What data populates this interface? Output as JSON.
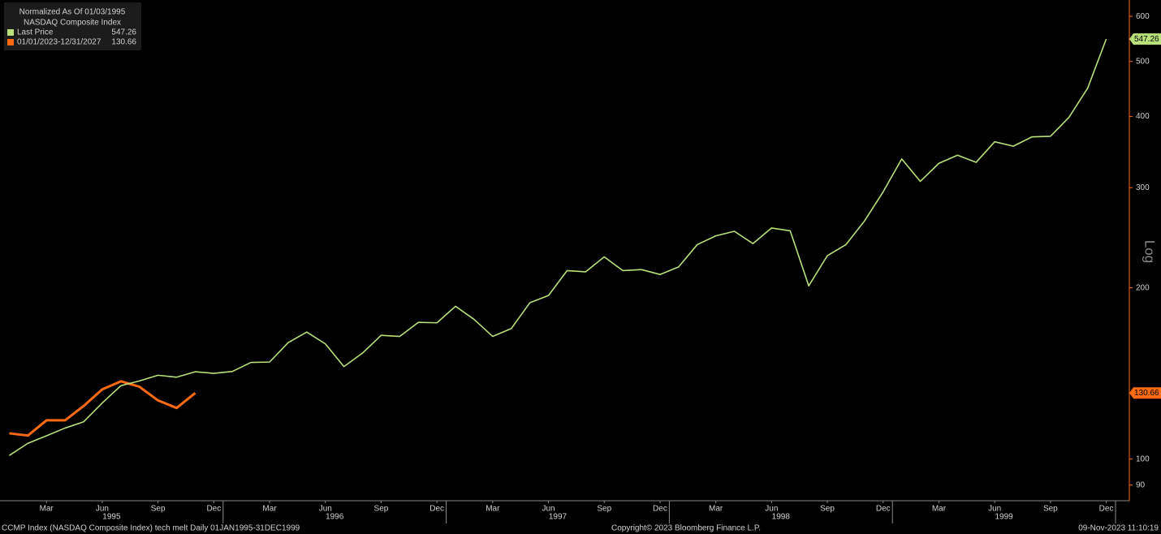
{
  "chart_data": {
    "type": "line",
    "legend_title": [
      "Normalized As Of 01/03/1995",
      "NASDAQ Composite Index"
    ],
    "y_axis_label": "Log",
    "log_scale": true,
    "x": [
      "1995-01",
      "1995-02",
      "1995-03",
      "1995-04",
      "1995-05",
      "1995-06",
      "1995-07",
      "1995-08",
      "1995-09",
      "1995-10",
      "1995-11",
      "1995-12",
      "1996-01",
      "1996-02",
      "1996-03",
      "1996-04",
      "1996-05",
      "1996-06",
      "1996-07",
      "1996-08",
      "1996-09",
      "1996-10",
      "1996-11",
      "1996-12",
      "1997-01",
      "1997-02",
      "1997-03",
      "1997-04",
      "1997-05",
      "1997-06",
      "1997-07",
      "1997-08",
      "1997-09",
      "1997-10",
      "1997-11",
      "1997-12",
      "1998-01",
      "1998-02",
      "1998-03",
      "1998-04",
      "1998-05",
      "1998-06",
      "1998-07",
      "1998-08",
      "1998-09",
      "1998-10",
      "1998-11",
      "1998-12",
      "1999-01",
      "1999-02",
      "1999-03",
      "1999-04",
      "1999-05",
      "1999-06",
      "1999-07",
      "1999-08",
      "1999-09",
      "1999-10",
      "1999-11",
      "1999-12"
    ],
    "series": [
      {
        "name": "Last Price",
        "color": "#b8e07a",
        "values": [
          101.5,
          106.6,
          109.9,
          113.4,
          116.3,
          125.5,
          134.6,
          137.2,
          140.4,
          139.3,
          142.4,
          141.5,
          142.6,
          147.9,
          148.1,
          160.2,
          167.2,
          159.4,
          145.4,
          153.6,
          165.0,
          164.3,
          173.9,
          173.6,
          185.6,
          176.0,
          164.3,
          169.6,
          188.3,
          193.9,
          214.4,
          213.4,
          226.7,
          214.4,
          215.3,
          211.1,
          217.7,
          238.2,
          246.8,
          251.4,
          239.2,
          254.8,
          251.9,
          201.6,
          227.8,
          238.2,
          262.2,
          294.9,
          336.9,
          307.7,
          331.0,
          342.0,
          332.3,
          361.2,
          354.8,
          368.3,
          369.3,
          398.9,
          448.6,
          547.26
        ]
      },
      {
        "name": "01/01/2023-12/31/2027",
        "color": "#ff6a13",
        "values": [
          111.0,
          110.0,
          117.0,
          117.0,
          124.0,
          132.6,
          137.0,
          134.0,
          126.8,
          123.0,
          130.66,
          null,
          null,
          null,
          null,
          null,
          null,
          null,
          null,
          null,
          null,
          null,
          null,
          null,
          null,
          null,
          null,
          null,
          null,
          null,
          null,
          null,
          null,
          null,
          null,
          null,
          null,
          null,
          null,
          null,
          null,
          null,
          null,
          null,
          null,
          null,
          null,
          null,
          null,
          null,
          null,
          null,
          null,
          null,
          null,
          null,
          null,
          null,
          null,
          null
        ]
      }
    ],
    "ylim": [
      84.5,
      641
    ],
    "yticks": [
      90,
      100,
      200,
      300,
      400,
      500,
      600
    ],
    "xticks": [
      {
        "value": "1995-03",
        "label": "Mar"
      },
      {
        "value": "1995-06",
        "label": "Jun"
      },
      {
        "value": "1995-09",
        "label": "Sep"
      },
      {
        "value": "1995-12",
        "label": "Dec"
      },
      {
        "value": "1996-03",
        "label": "Mar"
      },
      {
        "value": "1996-06",
        "label": "Jun"
      },
      {
        "value": "1996-09",
        "label": "Sep"
      },
      {
        "value": "1996-12",
        "label": "Dec"
      },
      {
        "value": "1997-03",
        "label": "Mar"
      },
      {
        "value": "1997-06",
        "label": "Jun"
      },
      {
        "value": "1997-09",
        "label": "Sep"
      },
      {
        "value": "1997-12",
        "label": "Dec"
      },
      {
        "value": "1998-03",
        "label": "Mar"
      },
      {
        "value": "1998-06",
        "label": "Jun"
      },
      {
        "value": "1998-09",
        "label": "Sep"
      },
      {
        "value": "1998-12",
        "label": "Dec"
      },
      {
        "value": "1999-03",
        "label": "Mar"
      },
      {
        "value": "1999-06",
        "label": "Jun"
      },
      {
        "value": "1999-09",
        "label": "Sep"
      },
      {
        "value": "1999-12",
        "label": "Dec"
      }
    ],
    "year_labels": [
      "1995",
      "1996",
      "1997",
      "1998",
      "1999"
    ]
  },
  "footer": {
    "left": "CCMP Index (NASDAQ Composite Index) tech melt  Daily 01JAN1995-31DEC1999",
    "center": "Copyright© 2023 Bloomberg Finance L.P.",
    "right": "09-Nov-2023 11:10:19"
  }
}
